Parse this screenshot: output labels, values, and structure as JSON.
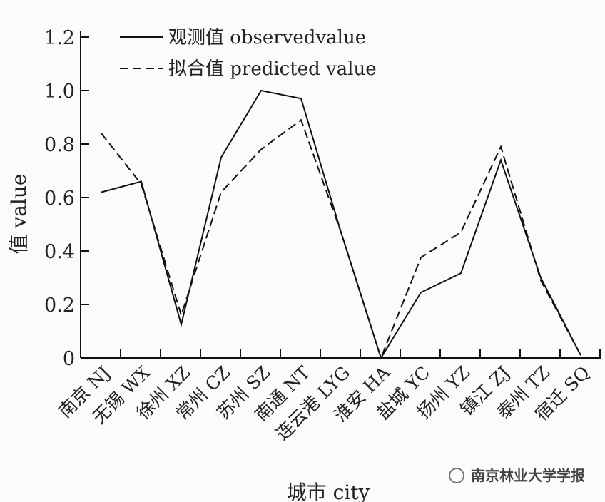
{
  "chart_data": {
    "type": "line",
    "title": "",
    "xlabel": "城市 city",
    "ylabel": "值 value",
    "ylim": [
      0,
      1.2
    ],
    "yticks": [
      "0",
      "0.2",
      "0.4",
      "0.6",
      "0.8",
      "1.0",
      "1.2"
    ],
    "grid": false,
    "legend_placement": "top-left",
    "categories": [
      "南京 NJ",
      "无锡 WX",
      "徐州 XZ",
      "常州 CZ",
      "苏州 SZ",
      "南通 NT",
      "连云港 LYG",
      "淮安 HA",
      "盐城 YC",
      "扬州 YZ",
      "镇江 ZJ",
      "泰州 TZ",
      "宿迁 SQ"
    ],
    "series": [
      {
        "name": "观测值 observedvalue",
        "style": "solid",
        "color": "#111111",
        "values": [
          0.62,
          0.66,
          0.125,
          0.75,
          1.0,
          0.97,
          0.47,
          0.0,
          0.245,
          0.317,
          0.74,
          0.3,
          0.01
        ]
      },
      {
        "name": "拟合值 predicted value",
        "style": "dashed",
        "color": "#111111",
        "values": [
          0.84,
          0.65,
          0.16,
          0.62,
          0.78,
          0.89,
          0.47,
          0.0,
          0.376,
          0.47,
          0.79,
          0.29,
          0.01
        ]
      }
    ]
  },
  "watermark": "南京林业大学学报"
}
